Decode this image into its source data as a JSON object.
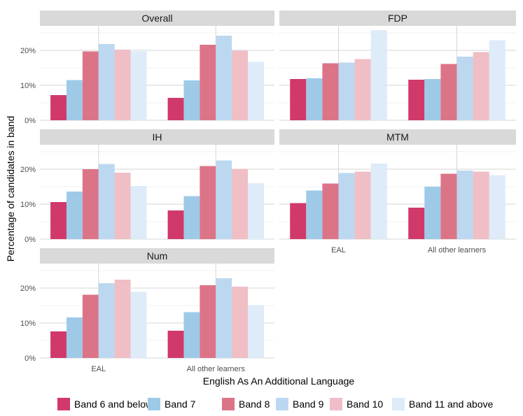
{
  "chart_data": {
    "type": "bar",
    "xlabel": "English As An Additional Language",
    "ylabel": "Percentage of candidates in band",
    "categories": [
      "EAL",
      "All other learners"
    ],
    "ylim": [
      0,
      27
    ],
    "y_ticks": [
      0,
      10,
      20
    ],
    "y_tick_labels": [
      "0%",
      "10%",
      "20%"
    ],
    "grid": true,
    "legend_position": "bottom",
    "series_names": [
      "Band 6 and below",
      "Band 7",
      "Band 8",
      "Band 9",
      "Band 10",
      "Band 11 and above"
    ],
    "series_colors": [
      "#d1396a",
      "#9ecae8",
      "#dc7488",
      "#bcd8f1",
      "#f0bec5",
      "#deebf8"
    ],
    "panels": [
      {
        "title": "Overall",
        "values": [
          [
            7.2,
            11.5,
            19.7,
            21.8,
            20.2,
            19.7
          ],
          [
            6.4,
            11.4,
            21.6,
            24.2,
            19.9,
            16.7
          ]
        ]
      },
      {
        "title": "FDP",
        "values": [
          [
            11.8,
            12.0,
            16.3,
            16.5,
            17.5,
            25.8
          ],
          [
            11.6,
            11.8,
            16.1,
            18.2,
            19.5,
            22.9
          ]
        ]
      },
      {
        "title": "IH",
        "values": [
          [
            10.6,
            13.6,
            20.0,
            21.5,
            19.0,
            15.2
          ],
          [
            8.2,
            12.3,
            20.9,
            22.5,
            20.1,
            16.0
          ]
        ]
      },
      {
        "title": "MTM",
        "values": [
          [
            10.3,
            13.9,
            15.9,
            18.9,
            19.3,
            21.6
          ],
          [
            9.0,
            15.0,
            18.7,
            19.6,
            19.3,
            18.3
          ]
        ]
      },
      {
        "title": "Num",
        "values": [
          [
            7.6,
            11.6,
            18.1,
            21.4,
            22.4,
            18.9
          ],
          [
            7.8,
            13.1,
            20.8,
            22.8,
            20.4,
            15.1
          ]
        ]
      }
    ]
  }
}
